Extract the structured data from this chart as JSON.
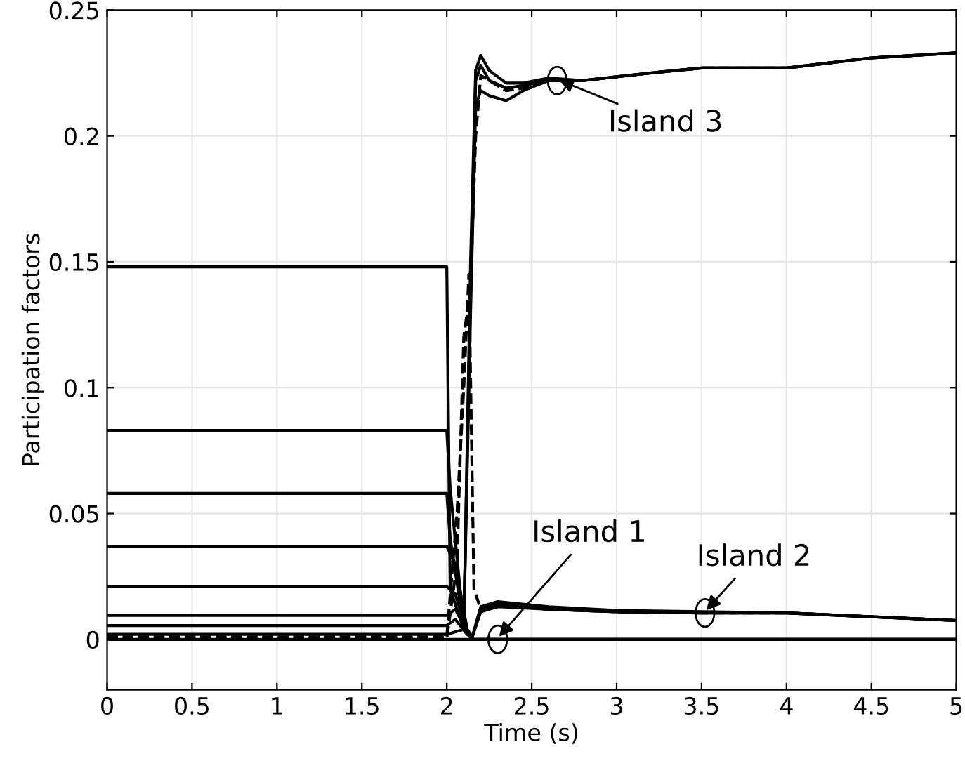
{
  "chart_data": {
    "type": "line",
    "xlabel": "Time (s)",
    "ylabel": "Participation factors",
    "xlim": [
      0,
      5
    ],
    "ylim": [
      -0.02,
      0.25
    ],
    "xticks": [
      0,
      0.5,
      1,
      1.5,
      2,
      2.5,
      3,
      3.5,
      4,
      4.5,
      5
    ],
    "yticks": [
      0,
      0.05,
      0.1,
      0.15,
      0.2,
      0.25
    ],
    "grid": true,
    "line_style": "solid",
    "series": [
      {
        "color": "#000000",
        "x": [
          0,
          2,
          2.02,
          2.1,
          2.14,
          2.17,
          2.2,
          2.25,
          2.35,
          2.45,
          2.6,
          2.8,
          3.2,
          3.5,
          4,
          4.5,
          5
        ],
        "values": [
          0.148,
          0.148,
          0.02,
          0.004,
          0.15,
          0.226,
          0.232,
          0.226,
          0.221,
          0.221,
          0.223,
          0.222,
          0.225,
          0.227,
          0.227,
          0.231,
          0.233
        ]
      },
      {
        "color": "#000000",
        "x": [
          0,
          2,
          2.02,
          2.1,
          2.14,
          2.17,
          2.2,
          2.25,
          2.35,
          2.45,
          2.6,
          2.8,
          3.2,
          3.5,
          4,
          4.5,
          5
        ],
        "values": [
          0.083,
          0.083,
          0.06,
          0.005,
          0.14,
          0.222,
          0.228,
          0.222,
          0.219,
          0.22,
          0.222,
          0.222,
          0.225,
          0.227,
          0.227,
          0.231,
          0.233
        ]
      },
      {
        "color": "#000000",
        "x": [
          0,
          2,
          2.02,
          2.1,
          2.14,
          2.17,
          2.2,
          2.25,
          2.35,
          2.45,
          2.6,
          2.8,
          3.2,
          3.5,
          4,
          4.5,
          5
        ],
        "values": [
          0.058,
          0.058,
          0.04,
          0.005,
          0.13,
          0.212,
          0.218,
          0.216,
          0.214,
          0.218,
          0.222,
          0.222,
          0.225,
          0.227,
          0.227,
          0.231,
          0.233
        ]
      },
      {
        "color": "#000000",
        "x": [
          0,
          2,
          2.05,
          2.12,
          2.15,
          2.2,
          2.3,
          2.6,
          3,
          3.5,
          4,
          4.5,
          5
        ],
        "values": [
          0.037,
          0.037,
          0.03,
          0.004,
          0.001,
          0.012,
          0.014,
          0.012,
          0.011,
          0.0105,
          0.0105,
          0.009,
          0.0075
        ]
      },
      {
        "color": "#000000",
        "x": [
          0,
          2,
          2.05,
          2.12,
          2.15,
          2.2,
          2.3,
          2.6,
          3,
          3.5,
          4,
          4.5,
          5
        ],
        "values": [
          0.021,
          0.021,
          0.018,
          0.003,
          0.001,
          0.011,
          0.013,
          0.012,
          0.011,
          0.0105,
          0.0105,
          0.009,
          0.0075
        ]
      },
      {
        "color": "#000000",
        "x": [
          0,
          2,
          2.05,
          2.12,
          2.15,
          2.2,
          2.3,
          2.6,
          3,
          3.5,
          4,
          4.5,
          5
        ],
        "values": [
          0.0095,
          0.0095,
          0.012,
          0.003,
          0.001,
          0.013,
          0.015,
          0.013,
          0.0115,
          0.011,
          0.0105,
          0.009,
          0.0075
        ]
      },
      {
        "color": "#000000",
        "x": [
          0,
          2,
          2.05,
          2.12,
          2.16,
          5
        ],
        "values": [
          0.0055,
          0.0055,
          0.008,
          0.002,
          0,
          0
        ]
      },
      {
        "color": "#000000",
        "x": [
          0,
          2,
          2.1,
          2.15,
          5
        ],
        "values": [
          0.002,
          0.002,
          0.004,
          0,
          0
        ]
      },
      {
        "color": "#000000",
        "line_style": "dashed",
        "x": [
          0,
          2,
          2.06,
          2.1,
          2.13,
          2.16,
          2.2,
          2.3,
          2.6,
          3,
          3.5,
          4,
          4.5,
          5
        ],
        "values": [
          0.001,
          0.001,
          0.05,
          0.1,
          0.145,
          0.02,
          0.012,
          0.014,
          0.012,
          0.011,
          0.0105,
          0.0105,
          0.009,
          0.0075
        ]
      },
      {
        "color": "#000000",
        "line_style": "dashed",
        "x": [
          0,
          2,
          2.06,
          2.1,
          2.14,
          2.17,
          2.2,
          2.25,
          2.35,
          2.45,
          2.6,
          2.8,
          3.2,
          3.5,
          4,
          4.5,
          5
        ],
        "values": [
          0.0005,
          0.0005,
          0.03,
          0.12,
          0.14,
          0.2,
          0.224,
          0.222,
          0.218,
          0.219,
          0.222,
          0.222,
          0.225,
          0.227,
          0.227,
          0.231,
          0.233
        ]
      },
      {
        "color": "#000000",
        "x": [
          0,
          5
        ],
        "values": [
          0,
          0
        ]
      }
    ],
    "annotations": [
      {
        "text": "Island 3",
        "x": 2.65,
        "y": 0.222
      },
      {
        "text": "Island 1",
        "x": 2.3,
        "y": 0.0
      },
      {
        "text": "Island 2",
        "x": 3.52,
        "y": 0.0105
      }
    ]
  }
}
